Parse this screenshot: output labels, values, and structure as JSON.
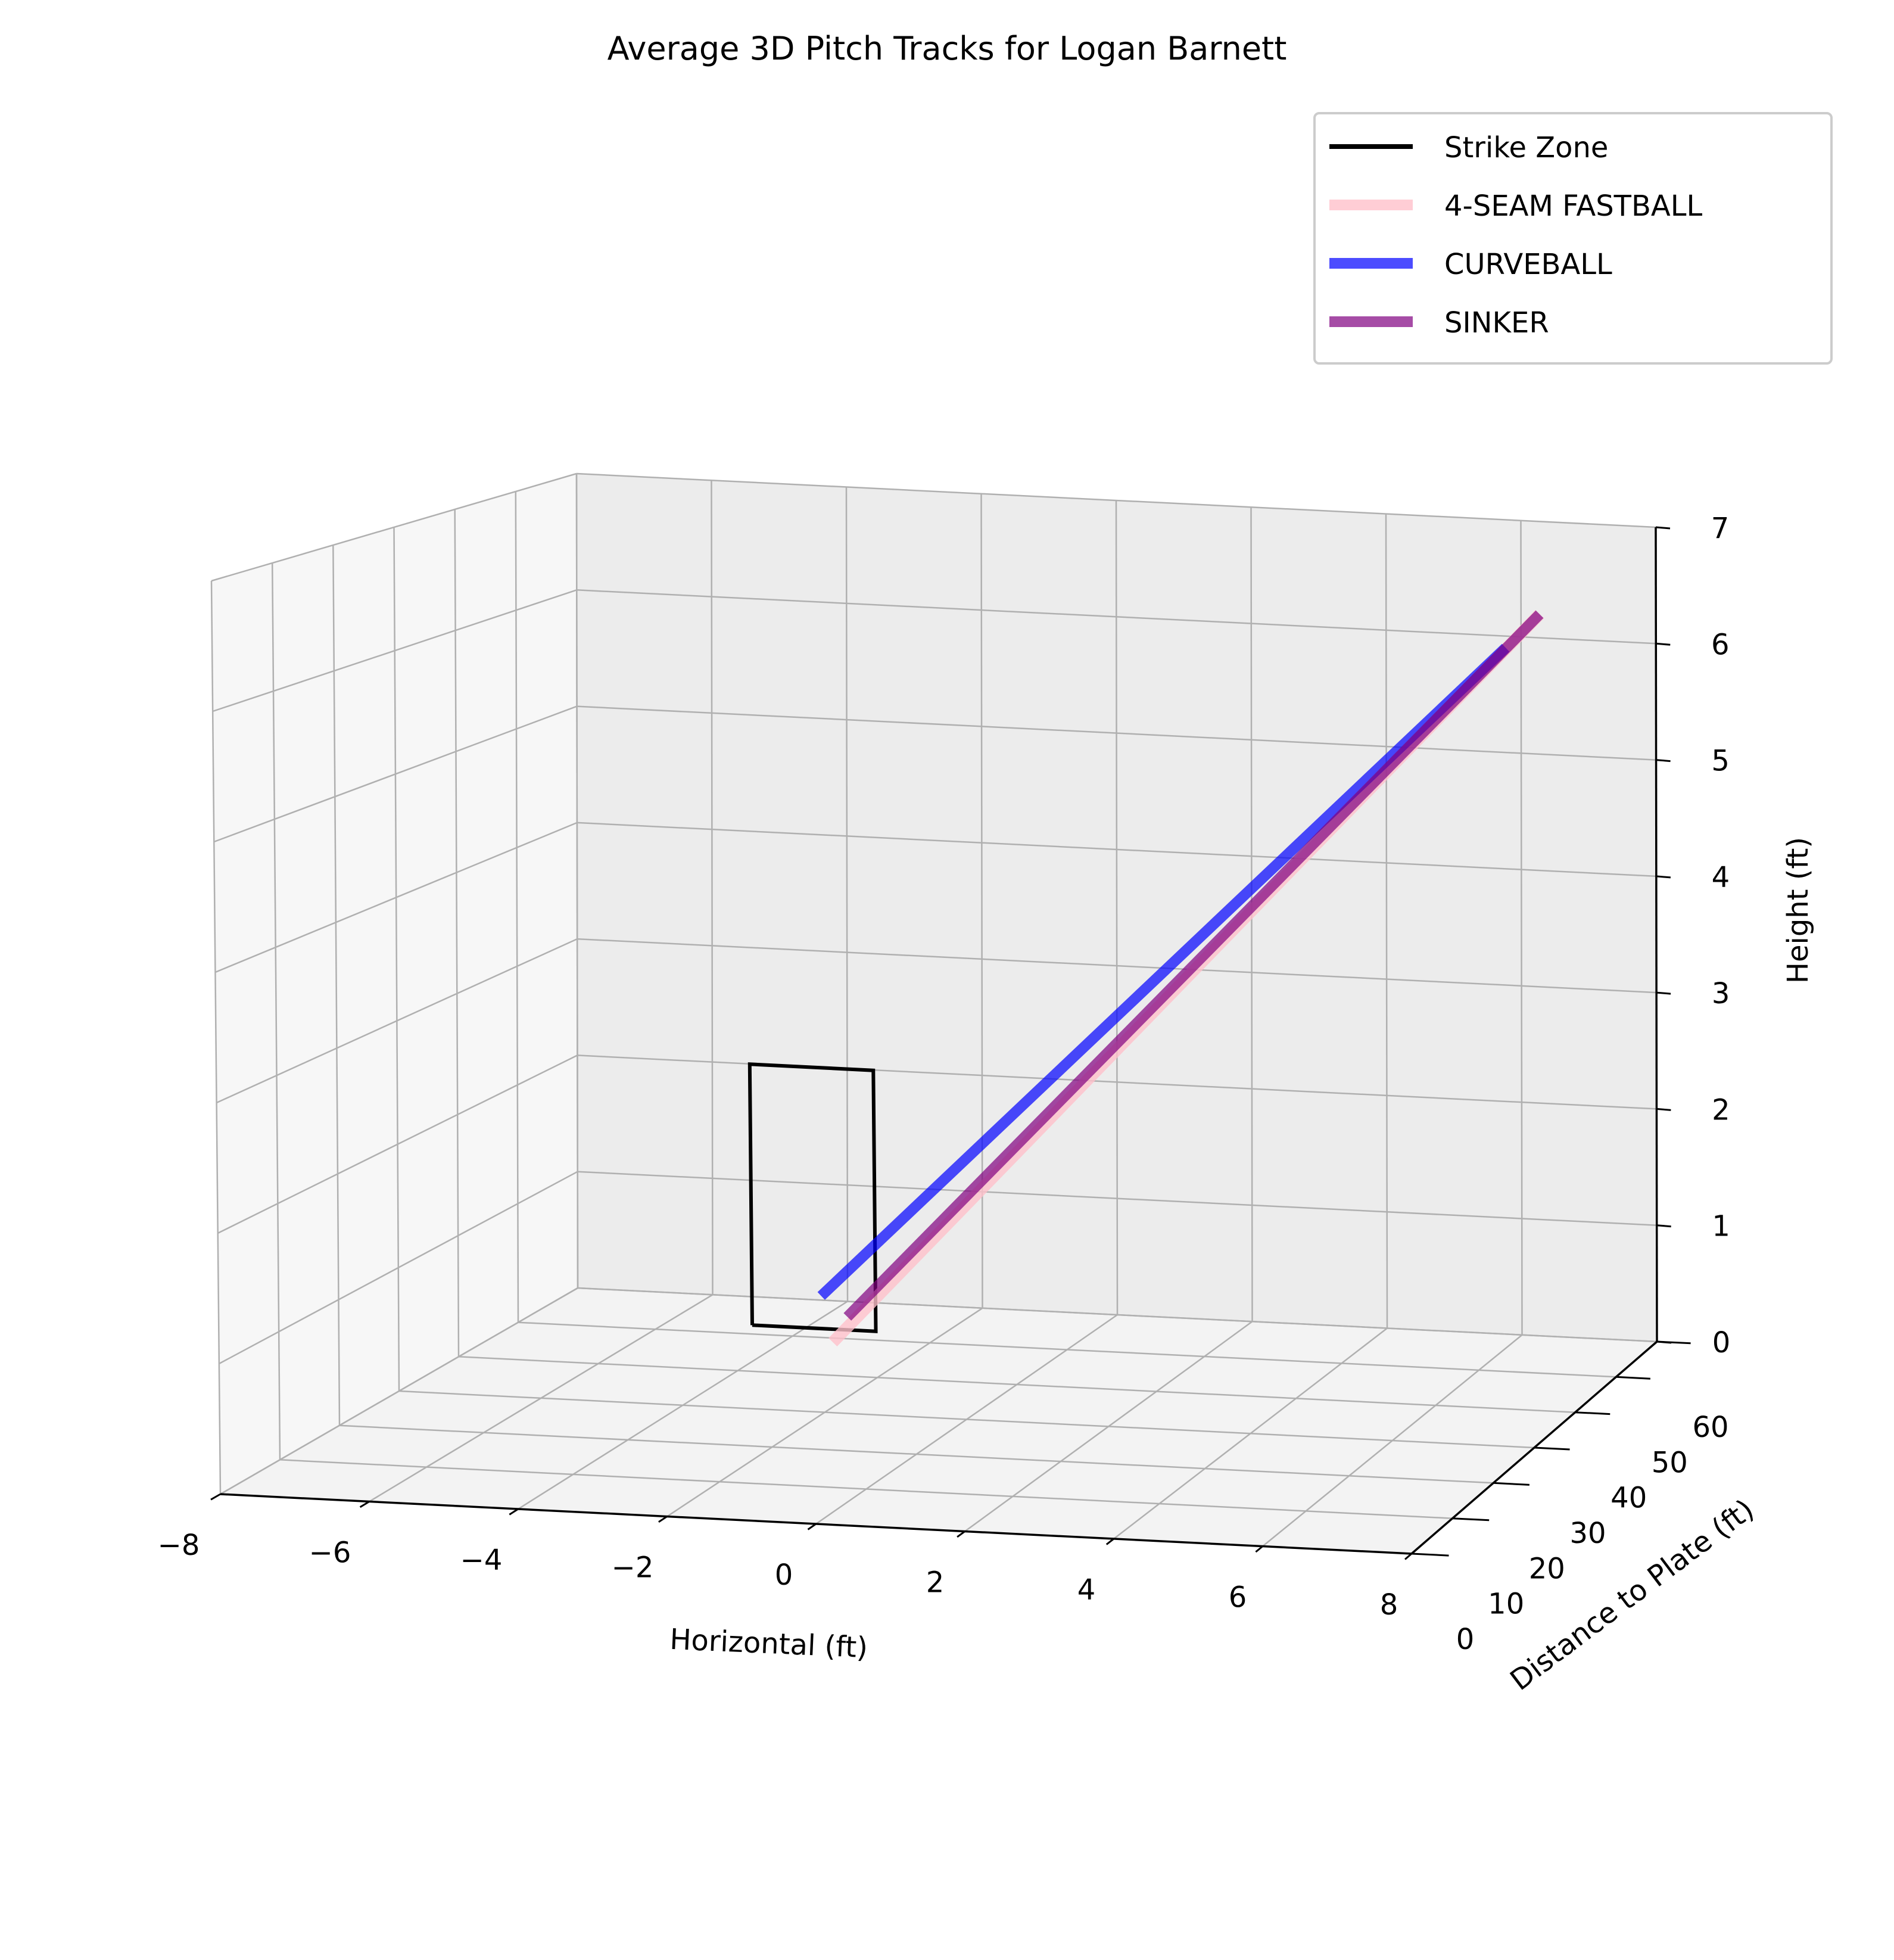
{
  "chart_data": {
    "type": "line",
    "projection": "3d",
    "title": "Average 3D Pitch Tracks for Logan Barnett",
    "xlabel": "Horizontal (ft)",
    "ylabel": "Distance to Plate (ft)",
    "zlabel": "Height (ft)",
    "xlim": [
      -8,
      8
    ],
    "ylim": [
      0,
      60
    ],
    "zlim": [
      0,
      7
    ],
    "x_ticks": [
      -8,
      -6,
      -4,
      -2,
      0,
      2,
      4,
      6,
      8
    ],
    "x_tick_labels": [
      "−8",
      "−6",
      "−4",
      "−2",
      "0",
      "2",
      "4",
      "6",
      "8"
    ],
    "y_ticks": [
      0,
      10,
      20,
      30,
      40,
      50,
      60
    ],
    "y_tick_labels": [
      "0",
      "10",
      "20",
      "30",
      "40",
      "50",
      "60"
    ],
    "z_ticks": [
      0,
      1,
      2,
      3,
      4,
      5,
      6,
      7
    ],
    "z_tick_labels": [
      "0",
      "1",
      "2",
      "3",
      "4",
      "5",
      "6",
      "7"
    ],
    "grid": true,
    "legend_position": "top-right",
    "strike_zone": {
      "name": "Strike Zone",
      "color": "#000000",
      "x": [
        -0.83,
        0.83,
        0.83,
        -0.83,
        -0.83
      ],
      "y": [
        0,
        0,
        0,
        0,
        0
      ],
      "z": [
        1.5,
        1.5,
        3.5,
        3.5,
        1.5
      ]
    },
    "series": [
      {
        "name": "4-SEAM FASTBALL",
        "color": "#ffc0cb",
        "x_start": 0.25,
        "y_start": 0,
        "z_start": 1.4,
        "x_end": 6.6,
        "y_end": 55,
        "z_end": 6.3
      },
      {
        "name": "CURVEBALL",
        "color": "#0000ff",
        "x_start": 0.1,
        "y_start": 0,
        "z_start": 1.75,
        "x_end": 6.1,
        "y_end": 55,
        "z_end": 6.0
      },
      {
        "name": "SINKER",
        "color": "#800080",
        "x_start": 0.45,
        "y_start": 0,
        "z_start": 1.6,
        "x_end": 6.6,
        "y_end": 55,
        "z_end": 6.3
      }
    ]
  }
}
